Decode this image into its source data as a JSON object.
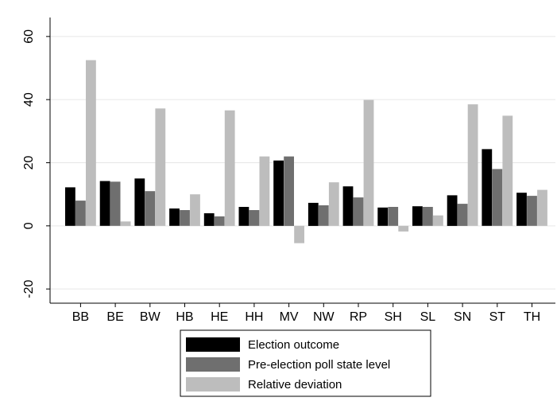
{
  "chart_data": {
    "type": "bar",
    "categories": [
      "BB",
      "BE",
      "BW",
      "HB",
      "HE",
      "HH",
      "MV",
      "NW",
      "RP",
      "SH",
      "SL",
      "SN",
      "ST",
      "TH"
    ],
    "series": [
      {
        "name": "Election outcome",
        "color": "#000000",
        "values": [
          12.2,
          14.2,
          15.0,
          5.5,
          4.0,
          6.0,
          20.7,
          7.3,
          12.5,
          5.8,
          6.2,
          9.7,
          24.3,
          10.5
        ]
      },
      {
        "name": "Pre-election poll state level",
        "color": "#6f6f6f",
        "values": [
          8.0,
          14.0,
          11.0,
          5.0,
          3.0,
          5.0,
          22.0,
          6.5,
          9.0,
          6.0,
          6.0,
          7.0,
          18.0,
          9.5
        ]
      },
      {
        "name": "Relative deviation",
        "color": "#bdbdbd",
        "values": [
          52.5,
          1.4,
          37.2,
          10.0,
          36.6,
          22.0,
          -5.5,
          13.8,
          39.9,
          -1.8,
          3.3,
          38.5,
          34.9,
          11.4
        ]
      }
    ],
    "yticks": [
      "60",
      "40",
      "20",
      "0",
      "-20"
    ],
    "ytick_values": [
      60,
      40,
      20,
      0,
      -20
    ],
    "ylim": [
      -24.5,
      64.5
    ],
    "xlabel": "",
    "ylabel": "",
    "title": "",
    "grid": "horizontal",
    "legend_position": "bottom"
  }
}
